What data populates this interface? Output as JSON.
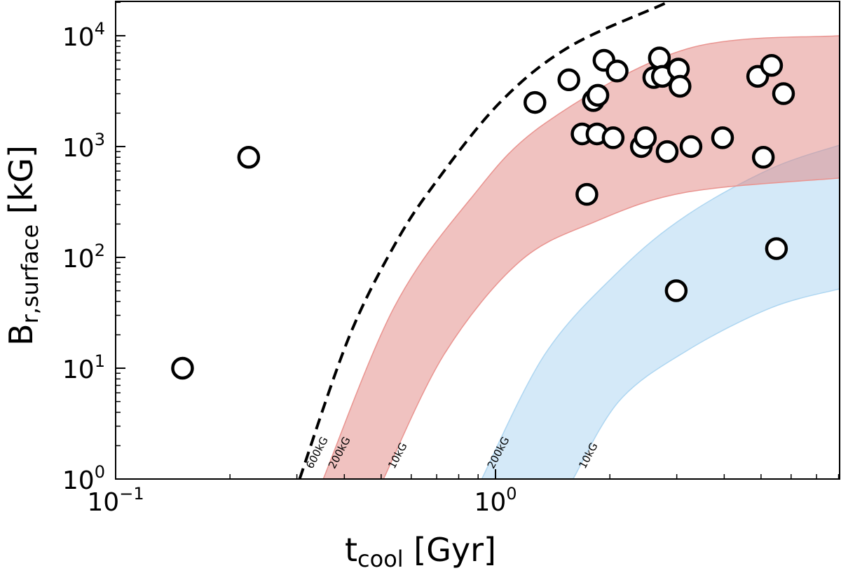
{
  "chart_data": {
    "type": "scatter",
    "xlabel": {
      "main": "t",
      "sub": "cool",
      "unit": " [Gyr]"
    },
    "ylabel": {
      "main": "B",
      "sub": "r,surface",
      "unit": " [kG]"
    },
    "xscale": "log",
    "yscale": "log",
    "xlim": [
      0.1,
      8.05
    ],
    "ylim": [
      1,
      20400
    ],
    "grid": false,
    "x_ticks": [
      {
        "value": 0.1,
        "base": "10",
        "exp": "−1"
      },
      {
        "value": 1,
        "base": "10",
        "exp": "0"
      }
    ],
    "y_ticks": [
      {
        "value": 1,
        "base": "10",
        "exp": "0"
      },
      {
        "value": 10,
        "base": "10",
        "exp": "1"
      },
      {
        "value": 100,
        "base": "10",
        "exp": "2"
      },
      {
        "value": 1000,
        "base": "10",
        "exp": "3"
      },
      {
        "value": 10000,
        "base": "10",
        "exp": "4"
      }
    ],
    "points": [
      [
        1.27,
        2500
      ],
      [
        1.56,
        4000
      ],
      [
        1.93,
        6000
      ],
      [
        2.09,
        4800
      ],
      [
        1.81,
        2600
      ],
      [
        1.86,
        2900
      ],
      [
        2.7,
        6300
      ],
      [
        2.61,
        4200
      ],
      [
        2.75,
        4300
      ],
      [
        3.03,
        5000
      ],
      [
        3.06,
        3500
      ],
      [
        4.9,
        4300
      ],
      [
        5.33,
        5400
      ],
      [
        5.73,
        3000
      ],
      [
        1.69,
        1300
      ],
      [
        1.85,
        1300
      ],
      [
        2.04,
        1200
      ],
      [
        2.42,
        1000
      ],
      [
        2.48,
        1200
      ],
      [
        2.83,
        900
      ],
      [
        3.27,
        1000
      ],
      [
        3.96,
        1200
      ],
      [
        5.07,
        800
      ],
      [
        1.74,
        370
      ],
      [
        0.15,
        10
      ],
      [
        0.224,
        800
      ],
      [
        2.99,
        50
      ],
      [
        5.49,
        120
      ]
    ],
    "curves": {
      "dashed_600kG": [
        [
          0.305,
          1
        ],
        [
          0.41,
          18.5
        ],
        [
          0.54,
          126
        ],
        [
          0.69,
          457
        ],
        [
          1.03,
          2520
        ],
        [
          1.57,
          8000
        ],
        [
          2.83,
          20000
        ],
        [
          3.2,
          26000
        ]
      ],
      "red_upper_200kG": [
        [
          0.352,
          1
        ],
        [
          0.54,
          35
        ],
        [
          0.855,
          330
        ],
        [
          1.35,
          1620
        ],
        [
          3.19,
          7600
        ],
        [
          8.05,
          10000
        ]
      ],
      "red_lower_10kG": [
        [
          0.507,
          1
        ],
        [
          0.733,
          13.4
        ],
        [
          1.155,
          91
        ],
        [
          1.83,
          210
        ],
        [
          3.19,
          388
        ],
        [
          8.05,
          520
        ]
      ],
      "blue_upper_200kG": [
        [
          0.92,
          1
        ],
        [
          1.35,
          13.4
        ],
        [
          2.12,
          76
        ],
        [
          3.19,
          240
        ],
        [
          5.3,
          630
        ],
        [
          8.05,
          1030
        ]
      ],
      "blue_lower_10kG": [
        [
          1.6,
          1
        ],
        [
          2.12,
          5.1
        ],
        [
          3.19,
          14.4
        ],
        [
          5.3,
          35
        ],
        [
          8.05,
          52
        ]
      ]
    },
    "curve_labels": [
      {
        "text": "600kG",
        "x": 0.31,
        "y": 1.15
      },
      {
        "text": "200kG",
        "x": 0.355,
        "y": 1.15
      },
      {
        "text": "10kG",
        "x": 0.51,
        "y": 1.15
      },
      {
        "text": "200kG",
        "x": 0.93,
        "y": 1.15
      },
      {
        "text": "10kG",
        "x": 1.62,
        "y": 1.15
      }
    ],
    "colors": {
      "red_fill": "#f2c4c3",
      "red_edge": "#e99490",
      "blue_fill": "#d5eaf8",
      "blue_edge": "#aed6f1",
      "overlap_fill": "#d8b8c4",
      "marker_face": "#ffffff",
      "marker_edge": "#000000"
    }
  }
}
